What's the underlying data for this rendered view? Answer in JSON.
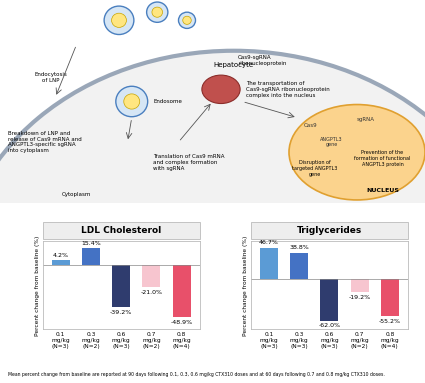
{
  "diagram": {
    "hepatocyte": "Hepatocyte",
    "endocytosis": "Endocytosis\nof LNP",
    "endosome": "Endosome",
    "rnp": "Cas9-sgRNA\nribonucleoprotein",
    "transport": "The transportation of\nCas9-sgRNA ribonucleoprotein\ncomplex into the nucleus",
    "breakdown": "Breakdown of LNP and\nrelease of Cas9 mRNA and\nANGPTL3-specific sgRNA\ninto cytoplasm",
    "translation": "Translation of Cas9 mRNA\nand complex formation\nwith sgRNA",
    "cytoplasm": "Cytoplasm",
    "nucleus": "NUCLEUS",
    "cas9": "Cas9",
    "sgrna": "sgRNA",
    "gene": "ANGPTL3\ngene",
    "disruption": "Disruption of\ntargeted ANGPTL3\ngene",
    "prevention": "Prevention of the\nformation of functional\nANGPTL3 protein"
  },
  "chart_data": [
    {
      "type": "bar",
      "title": "LDL Cholesterol",
      "ylabel": "Percent change from baseline (%)",
      "categories": [
        "0.1\nmg/kg\n(N=3)",
        "0.3\nmg/kg\n(N=2)",
        "0.6\nmg/kg\n(N=3)",
        "0.7\nmg/kg\n(N=2)",
        "0.8\nmg/kg\n(N=4)"
      ],
      "values": [
        4.2,
        15.4,
        -39.2,
        -21.0,
        -48.9
      ],
      "value_labels": [
        "4.2%",
        "15.4%",
        "-39.2%",
        "-21.0%",
        "-48.9%"
      ],
      "colors": [
        "#5b9bd5",
        "#4472c4",
        "#2f3c6e",
        "#f7c5cf",
        "#e8506a"
      ],
      "ylim": [
        -60,
        22
      ],
      "tick_labels": "x",
      "data_labels": true
    },
    {
      "type": "bar",
      "title": "Triglycerides",
      "ylabel": "Percent change from baseline (%)",
      "categories": [
        "0.1\nmg/kg\n(N=3)",
        "0.3\nmg/kg\n(N=3)",
        "0.6\nmg/kg\n(N=3)",
        "0.7\nmg/kg\n(N=2)",
        "0.8\nmg/kg\n(N=4)"
      ],
      "values": [
        46.7,
        38.8,
        -62.0,
        -19.2,
        -55.2
      ],
      "value_labels": [
        "46.7%",
        "38.8%",
        "-62.0%",
        "-19.2%",
        "-55.2%"
      ],
      "colors": [
        "#5b9bd5",
        "#4472c4",
        "#2f3c6e",
        "#f7c5cf",
        "#e8506a"
      ],
      "ylim": [
        -75,
        56
      ],
      "tick_labels": "x",
      "data_labels": true
    }
  ],
  "footnote": "Mean percent change from baseline are reported at 90 days following 0.1, 0.3, 0.6 mg/kg CTX310 doses and at 60 days following 0.7 and 0.8 mg/kg CTX310 doses."
}
